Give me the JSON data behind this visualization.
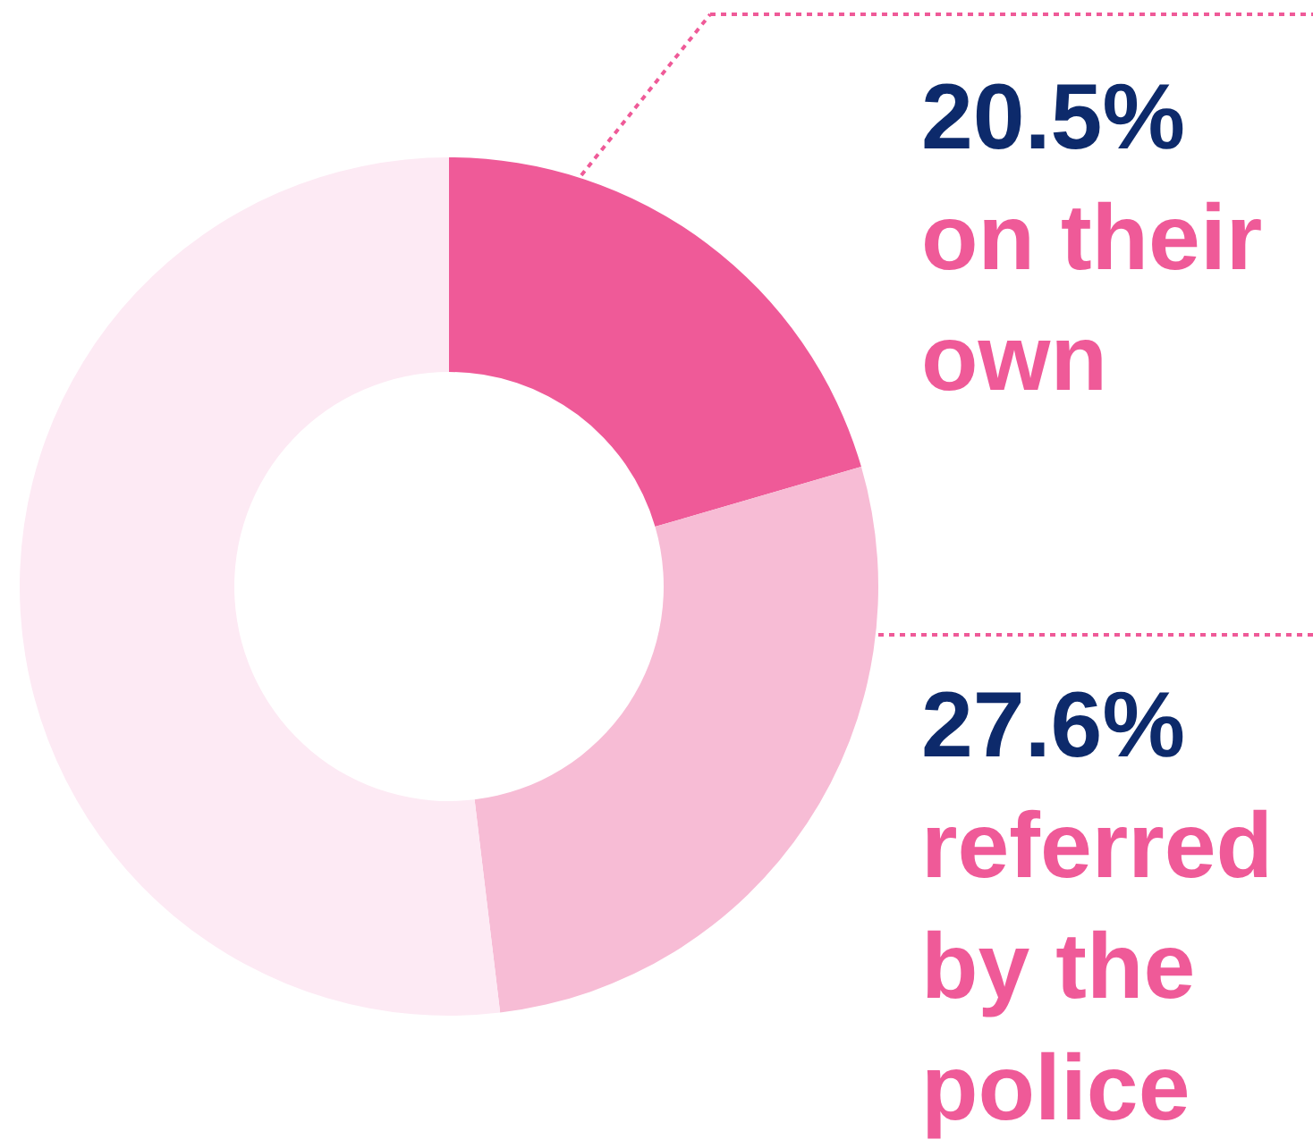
{
  "chart_data": {
    "type": "donut",
    "categories": [
      "on their own",
      "referred by the police",
      null
    ],
    "values": [
      20.5,
      27.6,
      51.9
    ],
    "colors": [
      "#ef5a98",
      "#f7bcd5",
      "#fdeaf4"
    ],
    "value_labels": [
      "20.5%",
      "27.6%",
      null
    ],
    "legend": false
  }
}
